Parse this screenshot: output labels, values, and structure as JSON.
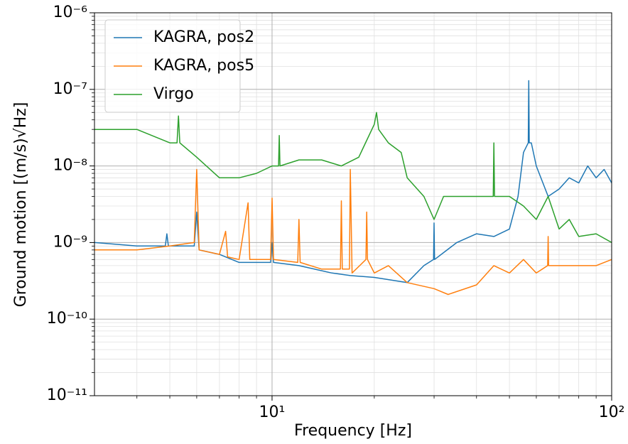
{
  "chart_data": {
    "type": "line",
    "xlabel": "Frequency [Hz]",
    "ylabel": "Ground motion [(m/s)√Hz]",
    "xscale": "log",
    "yscale": "log",
    "xlim": [
      3,
      100
    ],
    "ylim": [
      1e-11,
      1e-06
    ],
    "xticks": [
      {
        "value": 10,
        "label": "10¹"
      },
      {
        "value": 100,
        "label": "10²"
      }
    ],
    "yticks": [
      {
        "value": 1e-11,
        "label": "10⁻¹¹"
      },
      {
        "value": 1e-10,
        "label": "10⁻¹⁰"
      },
      {
        "value": 1e-09,
        "label": "10⁻⁹"
      },
      {
        "value": 1e-08,
        "label": "10⁻⁸"
      },
      {
        "value": 1e-07,
        "label": "10⁻⁷"
      },
      {
        "value": 1e-06,
        "label": "10⁻⁶"
      }
    ],
    "xminorticks": [
      4,
      5,
      6,
      7,
      8,
      9,
      20,
      30,
      40,
      50,
      60,
      70,
      80,
      90
    ],
    "yminorticks": [
      2e-11,
      3e-11,
      4e-11,
      5e-11,
      6e-11,
      7e-11,
      8e-11,
      9e-11,
      2e-10,
      3e-10,
      4e-10,
      5e-10,
      6e-10,
      7e-10,
      8e-10,
      9e-10,
      2e-09,
      3e-09,
      4e-09,
      5e-09,
      6e-09,
      7e-09,
      8e-09,
      9e-09,
      2e-08,
      3e-08,
      4e-08,
      5e-08,
      6e-08,
      7e-08,
      8e-08,
      9e-08,
      2e-07,
      3e-07,
      4e-07,
      5e-07,
      6e-07,
      7e-07,
      8e-07,
      9e-07
    ],
    "grid": "both",
    "legend": "upper left",
    "series": [
      {
        "name": "KAGRA, pos2",
        "color": "#1f77b4",
        "x": [
          3,
          4,
          4.85,
          4.9,
          4.95,
          5,
          5.9,
          6,
          6.1,
          7,
          8,
          9.9,
          10,
          10.1,
          12,
          15,
          17,
          20,
          25,
          28,
          29.9,
          30,
          30.1,
          35,
          40,
          45,
          50,
          53,
          55,
          56.8,
          57,
          57.2,
          58,
          60,
          65,
          70,
          75,
          80,
          85,
          90,
          95,
          100
        ],
        "values": [
          1e-09,
          9e-10,
          9e-10,
          1.3e-09,
          9e-10,
          9e-10,
          9e-10,
          2.5e-09,
          8e-10,
          7e-10,
          5.5e-10,
          5.5e-10,
          1e-09,
          5.5e-10,
          5e-10,
          4e-10,
          3.7e-10,
          3.5e-10,
          3e-10,
          5e-10,
          6e-10,
          1.8e-09,
          6e-10,
          1e-09,
          1.3e-09,
          1.2e-09,
          1.5e-09,
          4e-09,
          1.5e-08,
          2e-08,
          1.3e-07,
          2e-08,
          2e-08,
          1e-08,
          4e-09,
          5e-09,
          7e-09,
          6e-09,
          1e-08,
          7e-09,
          9e-09,
          6e-09
        ]
      },
      {
        "name": "KAGRA, pos5",
        "color": "#ff7f0e",
        "x": [
          3,
          4,
          5,
          5.9,
          6,
          6.1,
          7,
          7.3,
          7.4,
          8,
          8.5,
          8.6,
          9,
          9.9,
          10,
          10.1,
          11.9,
          12,
          12.1,
          14,
          15.9,
          16,
          16.1,
          16.9,
          17,
          17.2,
          18.9,
          19,
          19.1,
          20,
          22,
          25,
          30,
          33,
          40,
          45,
          50,
          55,
          60,
          64.8,
          65,
          65.2,
          70,
          80,
          90,
          100
        ],
        "values": [
          8e-10,
          8e-10,
          9e-10,
          1e-09,
          9e-09,
          8e-10,
          7e-10,
          1.4e-09,
          6.5e-10,
          6e-10,
          3.3e-09,
          6e-10,
          6e-10,
          6e-10,
          3.8e-09,
          6e-10,
          5.5e-10,
          2e-09,
          5.5e-10,
          4.5e-10,
          4.5e-10,
          3.5e-09,
          4.5e-10,
          4.5e-10,
          9e-09,
          4e-10,
          6e-10,
          2.5e-09,
          6e-10,
          4e-10,
          5e-10,
          3e-10,
          2.5e-10,
          2.1e-10,
          2.8e-10,
          5e-10,
          4e-10,
          6e-10,
          4e-10,
          5e-10,
          1.2e-09,
          5e-10,
          5e-10,
          5e-10,
          5e-10,
          6e-10
        ]
      },
      {
        "name": "Virgo",
        "color": "#2ca02c",
        "x": [
          3,
          4,
          5,
          5.25,
          5.3,
          5.35,
          6,
          7,
          8,
          9,
          10,
          10.45,
          10.5,
          10.55,
          12,
          14,
          16,
          18,
          20,
          20.3,
          20.6,
          22,
          24,
          25,
          28,
          30,
          32,
          35,
          40,
          44.8,
          45,
          45.2,
          50,
          55,
          60,
          65,
          70,
          75,
          80,
          90,
          100
        ],
        "values": [
          3e-08,
          3e-08,
          2e-08,
          2e-08,
          4.5e-08,
          2e-08,
          1.3e-08,
          7e-09,
          7e-09,
          8e-09,
          1e-08,
          1e-08,
          2.5e-08,
          1e-08,
          1.2e-08,
          1.2e-08,
          1e-08,
          1.3e-08,
          3.5e-08,
          5e-08,
          3e-08,
          2e-08,
          1.5e-08,
          7e-09,
          4e-09,
          2e-09,
          4e-09,
          4e-09,
          4e-09,
          4e-09,
          2e-08,
          4e-09,
          4e-09,
          3e-09,
          2e-09,
          4e-09,
          1.5e-09,
          2e-09,
          1.2e-09,
          1.3e-09,
          1e-09
        ]
      }
    ]
  }
}
